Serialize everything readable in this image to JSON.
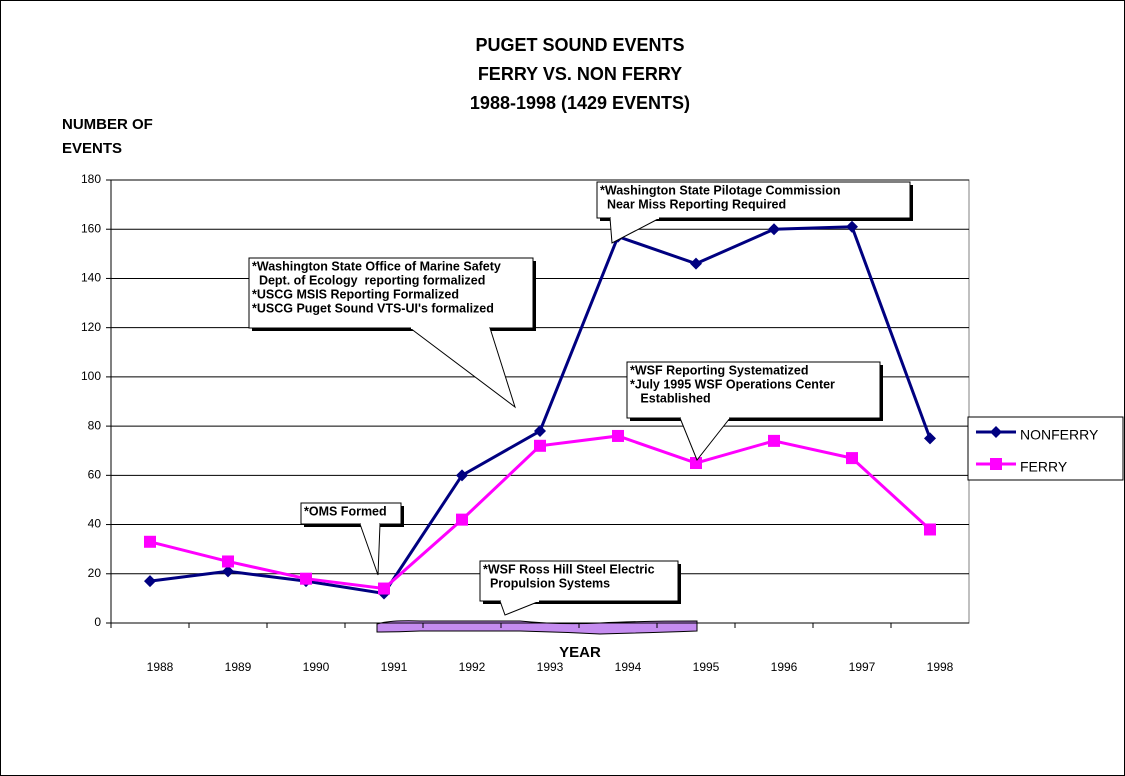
{
  "chart_data": {
    "type": "line",
    "title": [
      "PUGET SOUND EVENTS",
      " FERRY VS. NON FERRY",
      "1988-1998 (1429 EVENTS)"
    ],
    "y_label": [
      "NUMBER OF",
      "EVENTS"
    ],
    "x_label": "YEAR",
    "categories": [
      "1988",
      "1989",
      "1990",
      "1991",
      "1992",
      "1993",
      "1994",
      "1995",
      "1996",
      "1997",
      "1998"
    ],
    "series": [
      {
        "name": "NONFERRY",
        "color": "#000080",
        "marker": "diamond",
        "values": [
          17,
          21,
          17,
          12,
          60,
          78,
          157,
          146,
          160,
          161,
          75
        ]
      },
      {
        "name": "FERRY",
        "color": "#ff00ff",
        "marker": "square",
        "values": [
          33,
          25,
          18,
          14,
          42,
          72,
          76,
          65,
          74,
          67,
          38
        ]
      }
    ],
    "ylim": [
      0,
      180
    ],
    "yticks": [
      0,
      20,
      40,
      60,
      80,
      100,
      120,
      140,
      160,
      180
    ],
    "grid": true,
    "legend": "right",
    "annotations": [
      [
        "*Washington State Office of Marine Safety",
        "  Dept. of Ecology  reporting formalized",
        "*USCG MSIS Reporting Formalized",
        "*USCG Puget Sound VTS-UI's formalized"
      ],
      [
        "*Washington State Pilotage Commission",
        "  Near Miss Reporting Required"
      ],
      [
        "*WSF Reporting Systematized",
        "*July 1995 WSF Operations Center",
        "   Established"
      ],
      [
        "*OMS Formed"
      ],
      [
        "*WSF Ross Hill Steel Electric",
        "  Propulsion Systems"
      ]
    ]
  }
}
